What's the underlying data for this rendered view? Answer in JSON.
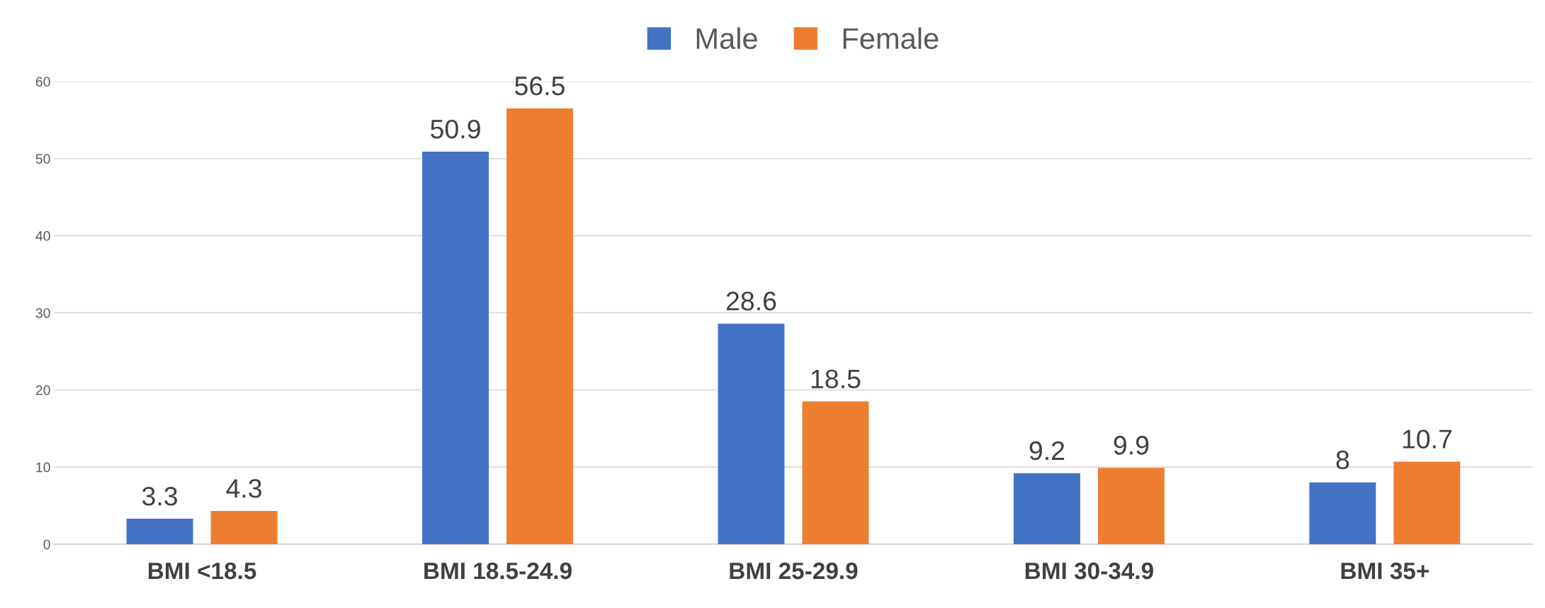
{
  "chart_data": {
    "type": "bar",
    "categories": [
      "BMI <18.5",
      "BMI 18.5-24.9",
      "BMI 25-29.9",
      "BMI 30-34.9",
      "BMI 35+"
    ],
    "series": [
      {
        "name": "Male",
        "color": "#4472c4",
        "values": [
          3.3,
          50.9,
          28.6,
          9.2,
          8
        ]
      },
      {
        "name": "Female",
        "color": "#ed7d31",
        "values": [
          4.3,
          56.5,
          18.5,
          9.9,
          10.7
        ]
      }
    ],
    "ylim": [
      0,
      60
    ],
    "yticks": [
      0,
      10,
      20,
      30,
      40,
      50,
      60
    ],
    "grid": "y",
    "legend": "top",
    "data_labels": true
  }
}
